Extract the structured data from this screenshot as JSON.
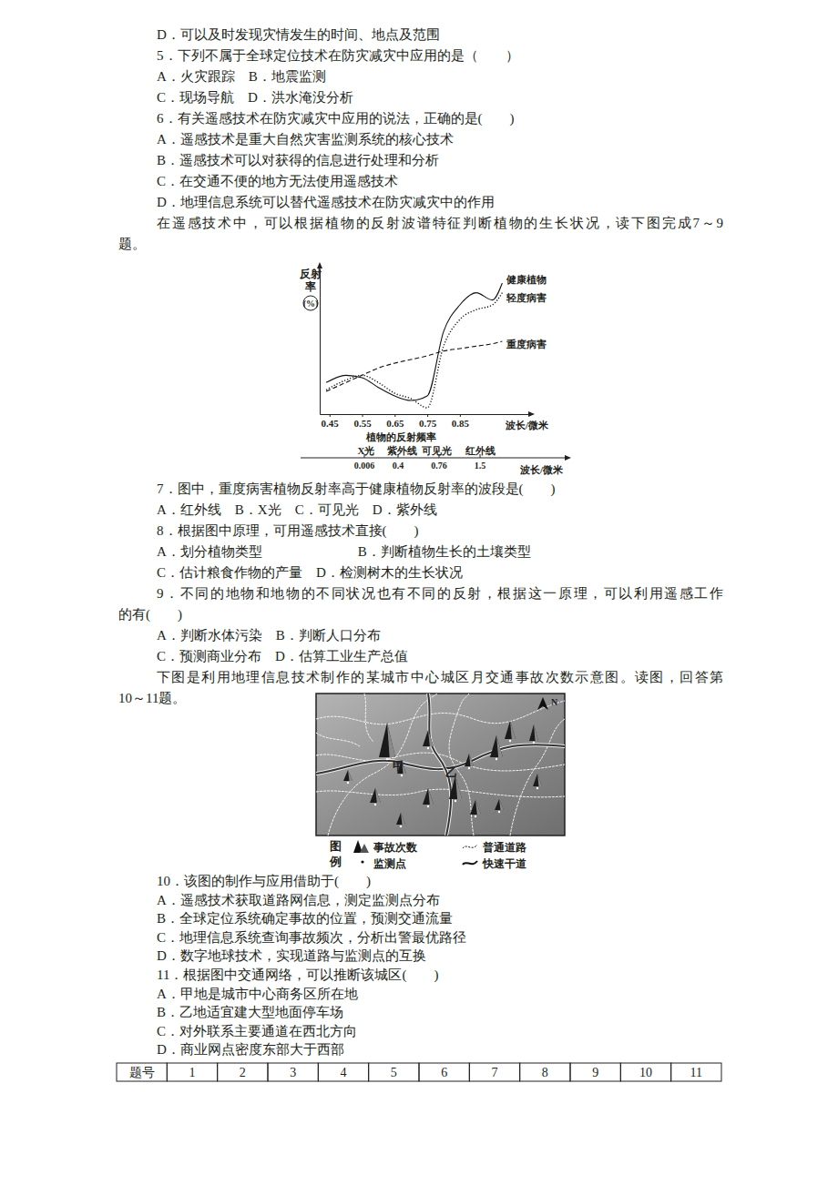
{
  "document": {
    "lines_1": [
      "D．可以及时发现灾情发生的时间、地点及范围",
      "5．下列不属于全球定位技术在防灾减灾中应用的是（　　）",
      "A．火灾跟踪　B．地震监测",
      "C．现场导航　D．洪水淹没分析",
      "6．有关遥感技术在防灾减灾中应用的说法，正确的是(　　)",
      "A．遥感技术是重大自然灾害监测系统的核心技术",
      "B．遥感技术可以对获得的信息进行处理和分析",
      "C．在交通不便的地方无法使用遥感技术",
      "D．地理信息系统可以替代遥感技术在防灾减灾中的作用",
      "在遥感技术中，可以根据植物的反射波谱特征判断植物的生长状况，读下图完成7～9",
      "题。"
    ],
    "spectrum": {
      "bands": [
        "X光",
        "紫外线",
        "可见光",
        "红外线"
      ],
      "boundaries": [
        "0.006",
        "0.4",
        "0.76",
        "1.5"
      ],
      "unit": "波长/微米"
    },
    "lines_2": [
      "7．图中，重度病害植物反射率高于健康植物反射率的波段是(　　)",
      "A．红外线　B．X光　C．可见光　D．紫外线",
      "8．根据图中原理，可用遥感技术直接(　　)",
      "A．划分植物类型　　　　　　　B．判断植物生长的土壤类型",
      "C．估计粮食作物的产量　D．检测树木的生长状况",
      "9．不同的地物和地物的不同状况也有不同的反射，根据这一原理，可以利用遥感工作",
      "的有(　　)",
      "A．判断水体污染　B．判断人口分布",
      "C．预测商业分布　D．估算工业生产总值",
      "下图是利用地理信息技术制作的某城市中心城区月交通事故次数示意图。读图，回答第",
      "10～11题。"
    ],
    "map": {
      "labels": [
        "甲",
        "乙"
      ],
      "north": "N",
      "legend_title": "图例",
      "legend_items": [
        "事故次数",
        "监测点",
        "普通道路",
        "快速干道"
      ]
    },
    "lines_3": [
      "10．该图的制作与应用借助于(　　)",
      "A．遥感技术获取道路网信息，测定监测点分布",
      "B．全球定位系统确定事故的位置，预测交通流量",
      "C．地理信息系统查询事故频次，分析出警最优路径",
      "D．数字地球技术，实现道路与监测点的互换",
      "11．根据图中交通网络，可以推断该城区(　　)",
      "A．甲地是城市中心商务区所在地",
      "B．乙地适宜建大型地面停车场",
      "C．对外联系主要通道在西北方向",
      "D．商业网点密度东部大于西部"
    ],
    "table": {
      "header": "题号",
      "numbers": [
        "1",
        "2",
        "3",
        "4",
        "5",
        "6",
        "7",
        "8",
        "9",
        "10",
        "11"
      ]
    }
  },
  "chart_data": {
    "type": "line",
    "title": "植物的反射频率",
    "x_label": "波长/微米",
    "y_label": "反射率(%)",
    "x": [
      0.44,
      0.5,
      0.55,
      0.6,
      0.65,
      0.7,
      0.75,
      0.8,
      0.85,
      0.9,
      0.95,
      0.98
    ],
    "xlim": [
      0.42,
      1.06
    ],
    "xticks": [
      0.45,
      0.55,
      0.65,
      0.75,
      0.85
    ],
    "ylim": [
      0,
      60
    ],
    "yticks": [],
    "tick_labels": "x",
    "series": [
      {
        "name": "健康植物",
        "color": "#111111",
        "line_style": "solid",
        "values": [
          13,
          16,
          15,
          11,
          7.5,
          5.6,
          7.5,
          34,
          45,
          50,
          47,
          54
        ]
      },
      {
        "name": "轻度病害",
        "color": "#111111",
        "line_style": "dotted",
        "values": [
          10,
          14,
          16,
          13,
          8.6,
          6.4,
          2.6,
          28,
          39,
          43,
          45,
          50
        ]
      },
      {
        "name": "重度病害",
        "color": "#111111",
        "line_style": "dashed",
        "values": [
          9.4,
          13,
          16,
          19,
          21,
          22.5,
          24,
          26,
          27,
          28,
          29,
          30
        ]
      }
    ]
  }
}
